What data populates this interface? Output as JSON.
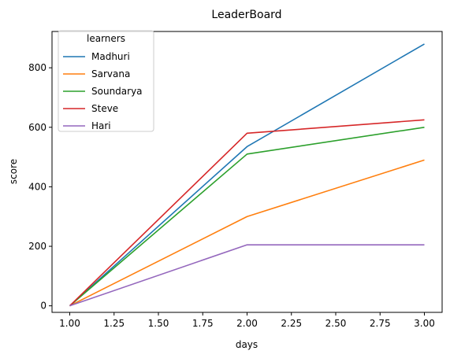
{
  "chart_data": {
    "type": "line",
    "title": "LeaderBoard",
    "xlabel": "days",
    "ylabel": "score",
    "x": [
      1,
      2,
      3
    ],
    "xlim": [
      0.9,
      3.1
    ],
    "ylim": [
      -22,
      922
    ],
    "xticks": [
      1.0,
      1.25,
      1.5,
      1.75,
      2.0,
      2.25,
      2.5,
      2.75,
      3.0
    ],
    "xtick_labels": [
      "1.00",
      "1.25",
      "1.50",
      "1.75",
      "2.00",
      "2.25",
      "2.50",
      "2.75",
      "3.00"
    ],
    "yticks": [
      0,
      200,
      400,
      600,
      800
    ],
    "ytick_labels": [
      "0",
      "200",
      "400",
      "600",
      "800"
    ],
    "grid": false,
    "legend": {
      "title": "learners",
      "placement": "top-left"
    },
    "series": [
      {
        "name": "Madhuri",
        "color": "#1f77b4",
        "values": [
          0,
          535,
          880
        ]
      },
      {
        "name": "Sarvana",
        "color": "#ff7f0e",
        "values": [
          0,
          300,
          490
        ]
      },
      {
        "name": "Soundarya",
        "color": "#2ca02c",
        "values": [
          0,
          510,
          600
        ]
      },
      {
        "name": "Steve",
        "color": "#d62728",
        "values": [
          0,
          580,
          625
        ]
      },
      {
        "name": "Hari",
        "color": "#9467bd",
        "values": [
          0,
          205,
          205
        ]
      }
    ]
  }
}
